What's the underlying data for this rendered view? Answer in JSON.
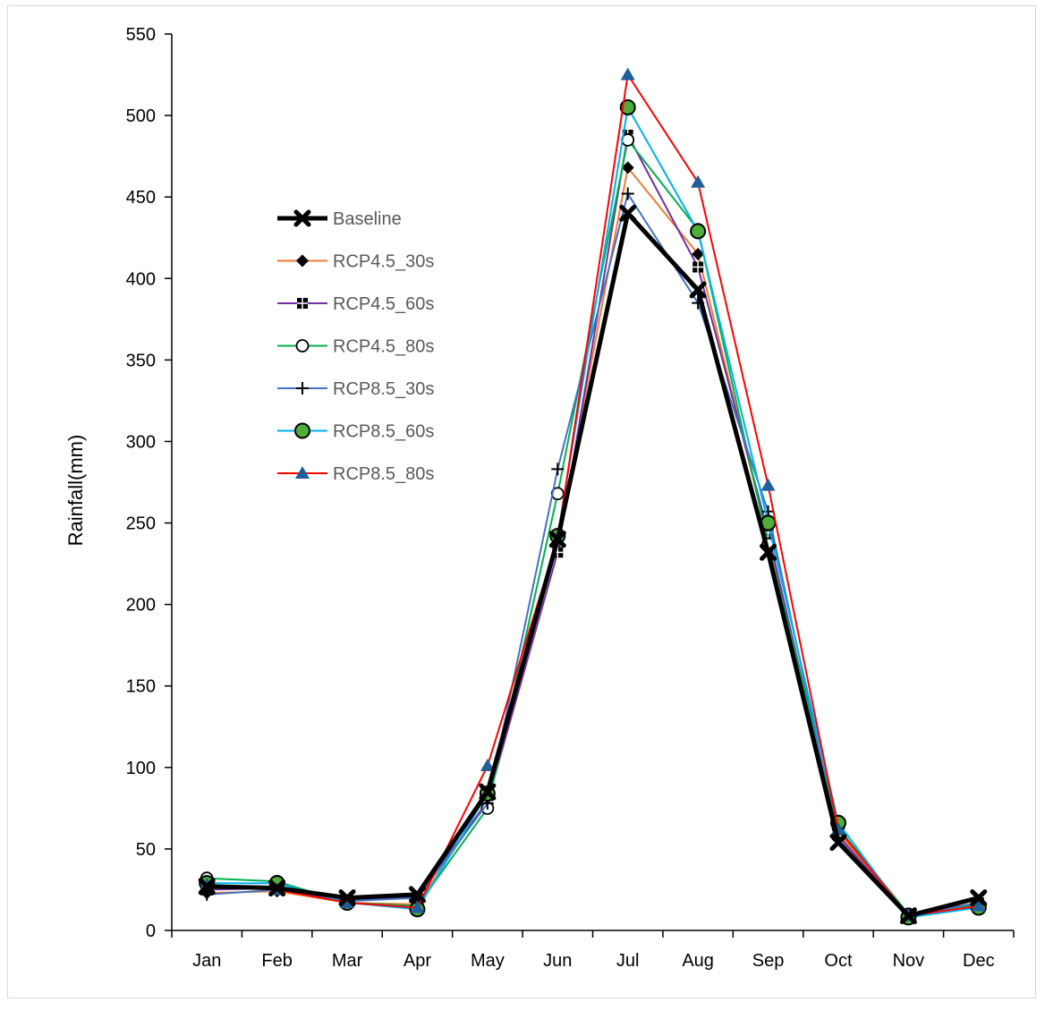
{
  "chart_data": {
    "type": "line",
    "title": "",
    "xlabel": "",
    "ylabel": "Rainfall(mm)",
    "ylim": [
      0,
      550
    ],
    "yticks": [
      0,
      50,
      100,
      150,
      200,
      250,
      300,
      350,
      400,
      450,
      500,
      550
    ],
    "categories": [
      "Jan",
      "Feb",
      "Mar",
      "Apr",
      "May",
      "Jun",
      "Jul",
      "Aug",
      "Sep",
      "Oct",
      "Nov",
      "Dec"
    ],
    "legend_position": "upper-left",
    "series": [
      {
        "name": "Baseline",
        "color": "#000000",
        "marker": "x-bold",
        "values": [
          27,
          26,
          20,
          22,
          85,
          240,
          440,
          393,
          232,
          54,
          9,
          20
        ]
      },
      {
        "name": "RCP4.5_30s",
        "color": "#ED7D31",
        "marker": "diamond",
        "values": [
          23,
          24,
          17,
          16,
          80,
          238,
          468,
          415,
          240,
          60,
          9,
          17
        ]
      },
      {
        "name": "RCP4.5_60s",
        "color": "#7030A0",
        "marker": "square-plus",
        "values": [
          25,
          26,
          18,
          21,
          79,
          232,
          488,
          407,
          244,
          58,
          9,
          17
        ]
      },
      {
        "name": "RCP4.5_80s",
        "color": "#00B050",
        "marker": "circle-open",
        "values": [
          32,
          30,
          17,
          15,
          75,
          268,
          485,
          430,
          237,
          63,
          10,
          16
        ]
      },
      {
        "name": "RCP8.5_30s",
        "color": "#4472C4",
        "marker": "plus",
        "values": [
          22,
          25,
          18,
          20,
          78,
          283,
          452,
          385,
          257,
          56,
          9,
          17
        ]
      },
      {
        "name": "RCP8.5_60s",
        "color": "#00B0F0",
        "marker": "circle-green",
        "values": [
          29,
          29,
          17,
          13,
          84,
          242,
          505,
          429,
          250,
          66,
          8,
          14
        ]
      },
      {
        "name": "RCP8.5_80s",
        "color": "#FF0000",
        "marker": "triangle",
        "values": [
          28,
          25,
          17,
          14,
          101,
          240,
          525,
          459,
          273,
          62,
          9,
          15
        ]
      }
    ]
  }
}
